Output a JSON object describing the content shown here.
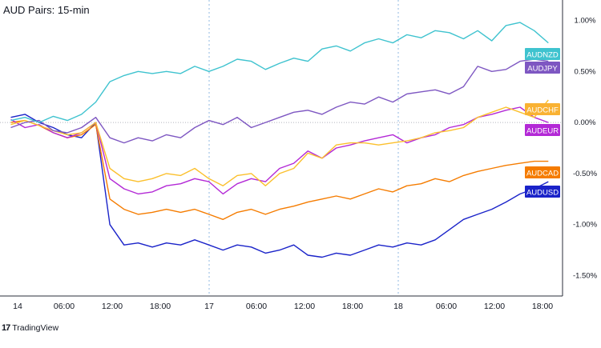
{
  "chart_data": {
    "type": "line",
    "title": "AUD Pairs: 15-min",
    "xlabel": "",
    "ylabel": "",
    "x_ticks": [
      "14",
      "06:00",
      "12:00",
      "18:00",
      "17",
      "06:00",
      "12:00",
      "18:00",
      "18",
      "06:00",
      "12:00",
      "18:00"
    ],
    "y_ticks": [
      "1.00%",
      "0.50%",
      "0.00%",
      "-0.50%",
      "-1.00%",
      "-1.50%"
    ],
    "ylim": [
      -1.7,
      1.2
    ],
    "xlim": [
      -2.3,
      117
    ],
    "grid": false,
    "x": [
      0,
      3,
      6,
      9,
      12,
      15,
      18,
      21,
      24,
      27,
      30,
      33,
      36,
      39,
      42,
      45,
      48,
      51,
      54,
      57,
      60,
      63,
      66,
      69,
      72,
      75,
      78,
      81,
      84,
      87,
      90,
      93,
      96,
      99,
      102,
      105,
      108,
      111,
      114
    ],
    "series": [
      {
        "name": "AUDNZD",
        "color": "#3fc3cf",
        "label_color": "#3fc3cf",
        "values": [
          0.02,
          0.05,
          0.0,
          0.06,
          0.02,
          0.08,
          0.2,
          0.4,
          0.46,
          0.5,
          0.48,
          0.5,
          0.48,
          0.55,
          0.5,
          0.55,
          0.62,
          0.6,
          0.52,
          0.58,
          0.63,
          0.6,
          0.72,
          0.75,
          0.7,
          0.78,
          0.82,
          0.78,
          0.86,
          0.83,
          0.9,
          0.88,
          0.82,
          0.9,
          0.8,
          0.95,
          0.98,
          0.9,
          0.78
        ]
      },
      {
        "name": "AUDJPY",
        "color": "#7e57c2",
        "label_color": "#7e57c2",
        "values": [
          -0.05,
          0.0,
          0.02,
          -0.08,
          -0.1,
          -0.05,
          0.05,
          -0.15,
          -0.2,
          -0.15,
          -0.18,
          -0.12,
          -0.15,
          -0.05,
          0.02,
          -0.02,
          0.05,
          -0.05,
          0.0,
          0.05,
          0.1,
          0.12,
          0.08,
          0.15,
          0.2,
          0.18,
          0.25,
          0.2,
          0.28,
          0.3,
          0.32,
          0.28,
          0.35,
          0.55,
          0.5,
          0.52,
          0.6,
          0.62,
          0.6
        ]
      },
      {
        "name": "AUDCHF",
        "color": "#fbc02d",
        "label_color": "#f9b233",
        "values": [
          -0.02,
          0.02,
          -0.03,
          -0.08,
          -0.12,
          -0.1,
          0.0,
          -0.45,
          -0.55,
          -0.58,
          -0.55,
          -0.5,
          -0.52,
          -0.45,
          -0.55,
          -0.62,
          -0.52,
          -0.5,
          -0.62,
          -0.5,
          -0.45,
          -0.3,
          -0.35,
          -0.22,
          -0.2,
          -0.2,
          -0.22,
          -0.2,
          -0.18,
          -0.15,
          -0.1,
          -0.08,
          -0.05,
          0.05,
          0.1,
          0.15,
          0.1,
          0.05,
          0.22
        ]
      },
      {
        "name": "AUDEUR",
        "color": "#b329d6",
        "label_color": "#b329d6",
        "values": [
          0.03,
          -0.05,
          -0.02,
          -0.1,
          -0.15,
          -0.1,
          0.0,
          -0.55,
          -0.65,
          -0.7,
          -0.68,
          -0.62,
          -0.6,
          -0.55,
          -0.58,
          -0.7,
          -0.6,
          -0.55,
          -0.58,
          -0.45,
          -0.4,
          -0.28,
          -0.35,
          -0.25,
          -0.22,
          -0.18,
          -0.15,
          -0.12,
          -0.2,
          -0.15,
          -0.12,
          -0.05,
          -0.02,
          0.05,
          0.08,
          0.12,
          0.15,
          0.05,
          0.0
        ]
      },
      {
        "name": "AUDCAD",
        "color": "#f57c00",
        "label_color": "#f57c00",
        "values": [
          0.0,
          0.02,
          -0.03,
          -0.1,
          -0.15,
          -0.12,
          -0.02,
          -0.75,
          -0.85,
          -0.9,
          -0.88,
          -0.85,
          -0.88,
          -0.85,
          -0.9,
          -0.95,
          -0.88,
          -0.85,
          -0.9,
          -0.85,
          -0.82,
          -0.78,
          -0.75,
          -0.72,
          -0.75,
          -0.7,
          -0.65,
          -0.68,
          -0.62,
          -0.6,
          -0.55,
          -0.58,
          -0.52,
          -0.48,
          -0.45,
          -0.42,
          -0.4,
          -0.38,
          -0.38
        ]
      },
      {
        "name": "AUDUSD",
        "color": "#1a23c9",
        "label_color": "#1a23c9",
        "values": [
          0.05,
          0.08,
          0.0,
          -0.05,
          -0.12,
          -0.15,
          0.0,
          -1.0,
          -1.2,
          -1.18,
          -1.22,
          -1.18,
          -1.2,
          -1.15,
          -1.2,
          -1.25,
          -1.2,
          -1.22,
          -1.28,
          -1.25,
          -1.2,
          -1.3,
          -1.32,
          -1.28,
          -1.3,
          -1.25,
          -1.2,
          -1.22,
          -1.18,
          -1.2,
          -1.15,
          -1.05,
          -0.95,
          -0.9,
          -0.85,
          -0.78,
          -0.7,
          -0.65,
          -0.58
        ]
      }
    ],
    "legend_order": [
      "AUDNZD",
      "AUDJPY",
      "AUDCHF",
      "AUDEUR",
      "AUDCAD",
      "AUDUSD"
    ]
  },
  "footer": {
    "brand": "TradingView",
    "logo_glyph": "17"
  }
}
